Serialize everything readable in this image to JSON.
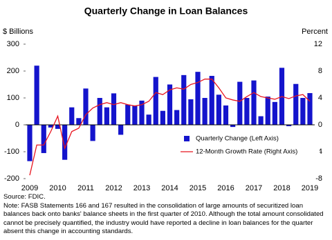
{
  "chart_data": {
    "type": "bar-line",
    "title": "Quarterly Change in Loan Balances",
    "y_label": "$ Billions",
    "y2_label": "Percent",
    "categories": [
      "2009",
      null,
      null,
      null,
      "2010",
      null,
      null,
      null,
      "2011",
      null,
      null,
      null,
      "2012",
      null,
      null,
      null,
      "2013",
      null,
      null,
      null,
      "2014",
      null,
      null,
      null,
      "2015",
      null,
      null,
      null,
      "2016",
      null,
      null,
      null,
      "2017",
      null,
      null,
      null,
      "2018",
      null,
      null,
      null,
      "2019"
    ],
    "series": [
      {
        "name": "Quarterly Change (Left Axis)",
        "kind": "bar",
        "color": "#1414cc",
        "values": [
          -135,
          220,
          -105,
          -10,
          -15,
          -130,
          65,
          25,
          135,
          -60,
          100,
          65,
          117,
          -37,
          75,
          72,
          90,
          38,
          178,
          52,
          150,
          55,
          185,
          95,
          197,
          100,
          182,
          112,
          72,
          -8,
          160,
          100,
          165,
          32,
          105,
          85,
          212,
          -5,
          152,
          100,
          118
        ]
      },
      {
        "name": "12-Month Growth Rate (Right Axis)",
        "kind": "line",
        "axis": "y2",
        "color": "#e8141e",
        "values": [
          -7.5,
          -3,
          -3,
          -1,
          1.3,
          -3.5,
          -1,
          -0.5,
          1.5,
          2.5,
          3,
          3.3,
          3,
          3.3,
          3,
          2.8,
          3,
          3.5,
          4.8,
          4.5,
          5.2,
          5.5,
          5.3,
          6,
          6.3,
          6.8,
          6.8,
          5.5,
          4,
          3.7,
          3.5,
          4.2,
          4.8,
          4.2,
          4,
          3.8,
          4.2,
          3.9,
          4.3,
          4.5,
          3.5
        ]
      }
    ],
    "ylim": [
      -200,
      300
    ],
    "yticks": [
      -200,
      -100,
      0,
      100,
      200,
      300
    ],
    "y2lim": [
      -8,
      12
    ],
    "y2ticks": [
      -8,
      -4,
      0,
      4,
      8,
      12
    ],
    "source": "Source:  FDIC.",
    "note": "Note: FASB Statements 166 and 167 resulted in the consolidation of large amounts of securitized loan balances back onto banks' balance sheets in the first quarter of 2010.  Although the total amount consolidated cannot be precisely quantified, the industry would have reported a decline in loan balances for the quarter absent this change in accounting standards."
  }
}
